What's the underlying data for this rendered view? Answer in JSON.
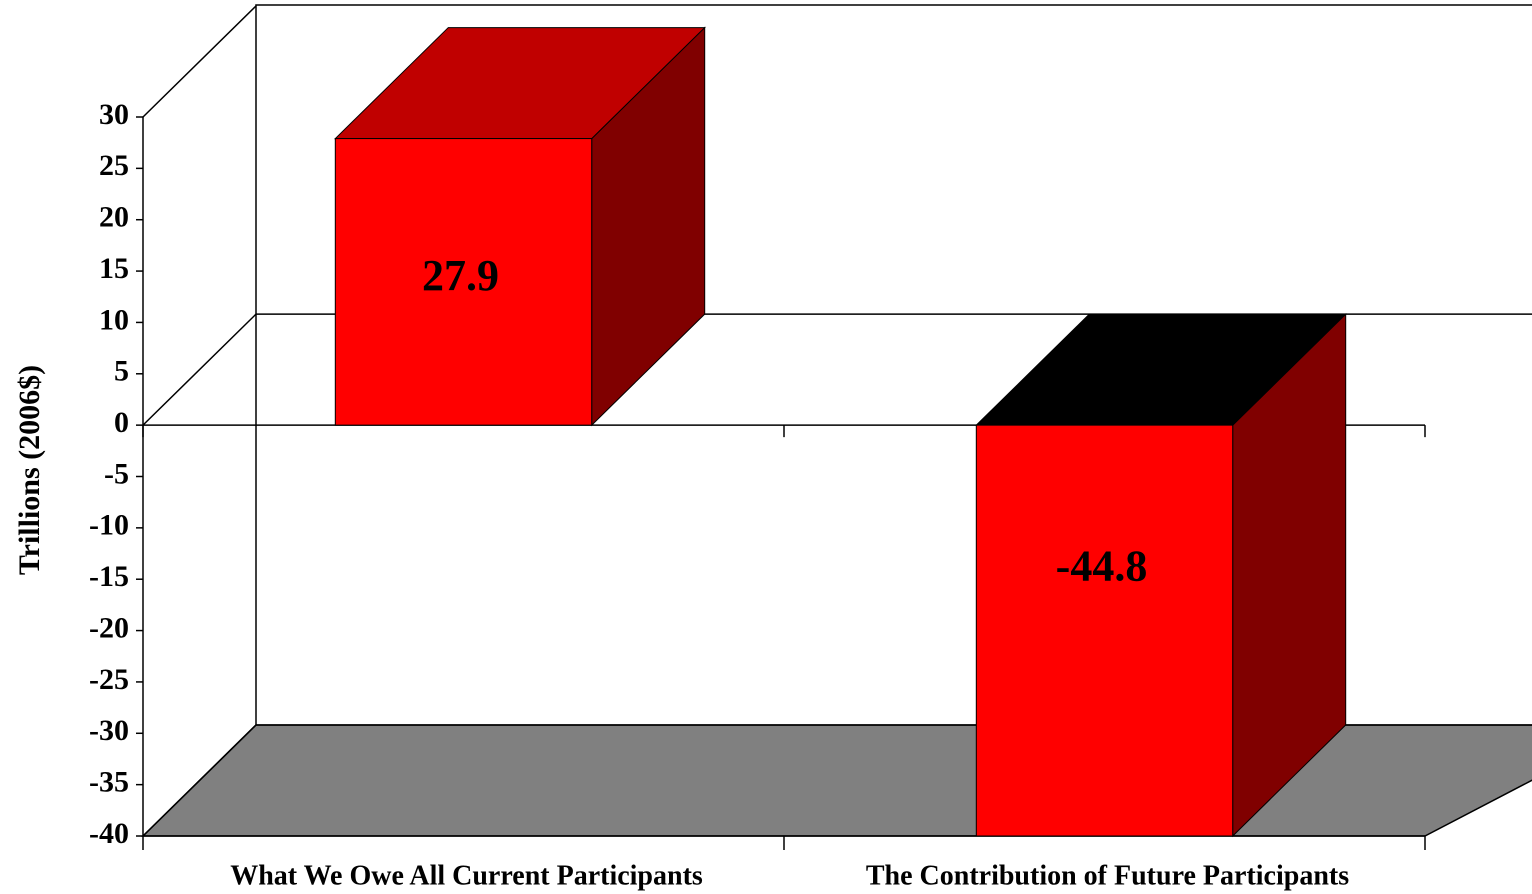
{
  "chart_data": {
    "type": "bar3d",
    "y_axis_label": "Trillions (2006$)",
    "categories": [
      "What We Owe All Current Participants",
      "The Contribution of Future Participants"
    ],
    "values": [
      27.9,
      -44.8
    ],
    "colors": {
      "front": "#ff0000",
      "top": "#c00000",
      "side": "#800000",
      "top_negative": "#000000",
      "floor": "#808080"
    },
    "ylim": [
      -40,
      30
    ],
    "yticks": [
      30,
      25,
      20,
      15,
      10,
      5,
      0,
      -5,
      -10,
      -15,
      -20,
      -25,
      -30,
      -35,
      -40
    ],
    "grid": false
  }
}
